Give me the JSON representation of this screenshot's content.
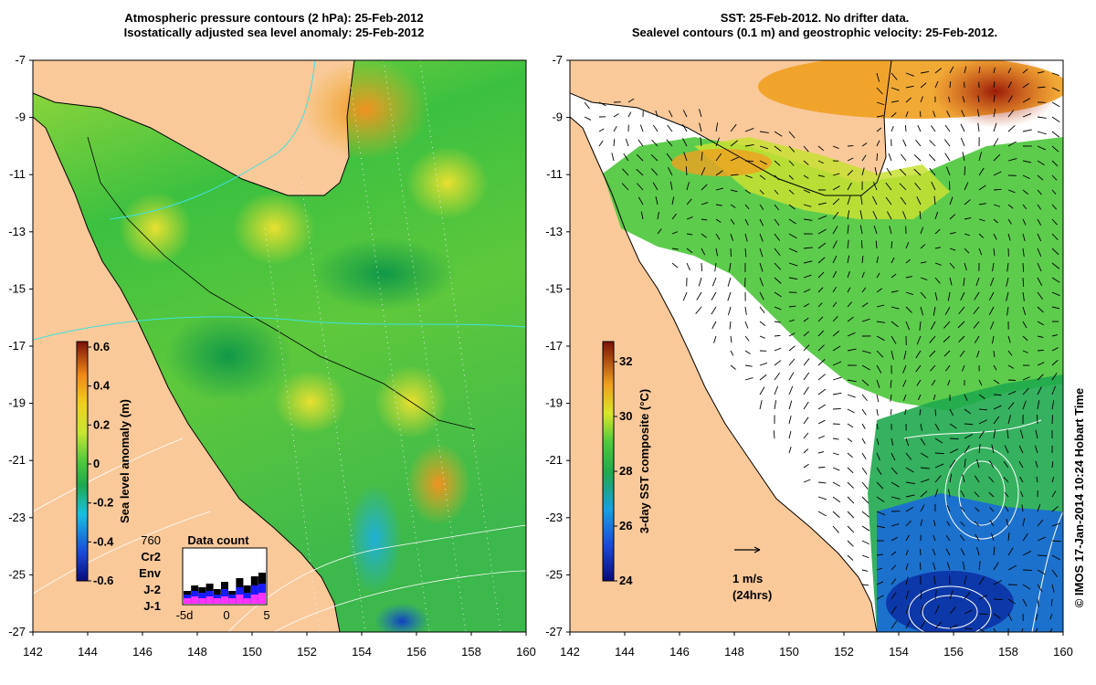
{
  "left_panel": {
    "title_line1": "Atmospheric pressure contours (2 hPa): 25-Feb-2012",
    "title_line2": "Isostatically adjusted sea level anomaly: 25-Feb-2012",
    "colorbar": {
      "label": "Sea level anomaly (m)",
      "ticks": [
        "0.6",
        "0.4",
        "0.2",
        "0",
        "-0.2",
        "-0.4",
        "-0.6"
      ]
    },
    "legend": {
      "count": "760",
      "items": [
        {
          "text": "Cr2",
          "color": "#000000"
        },
        {
          "text": "Env",
          "color": "#1a1aff"
        },
        {
          "text": "J-2",
          "color": "#ff33ff"
        },
        {
          "text": "J-1",
          "color": "#ff2020"
        }
      ]
    },
    "data_count": {
      "title": "Data count",
      "x_ticks": [
        "-5d",
        "0",
        "5"
      ]
    }
  },
  "right_panel": {
    "title_line1": "SST: 25-Feb-2012. No drifter data.",
    "title_line2": "Sealevel contours (0.1 m) and geostrophic velocity: 25-Feb-2012.",
    "colorbar": {
      "label": "3-day SST composite (°C)",
      "ticks": [
        "32",
        "30",
        "28",
        "26",
        "24"
      ]
    },
    "velocity_key": {
      "speed": "1 m/s",
      "duration": "(24hrs)"
    }
  },
  "axes": {
    "lat_ticks": [
      "-7",
      "-9",
      "-11",
      "-13",
      "-15",
      "-17",
      "-19",
      "-21",
      "-23",
      "-25",
      "-27"
    ],
    "lon_ticks": [
      "142",
      "144",
      "146",
      "148",
      "150",
      "152",
      "154",
      "156",
      "158",
      "160"
    ]
  },
  "credit": "© IMOS 17-Jan-2014 10:24 Hobart Time",
  "colors": {
    "land": "#f9c99a",
    "ocean_green": "#4fc83e",
    "ocean_dark_green": "#1fa84e",
    "ocean_yellow": "#c8e632",
    "ocean_orange": "#f0a020",
    "ocean_cyan": "#22b7c8",
    "sst_blue": "#1a6ad8"
  }
}
